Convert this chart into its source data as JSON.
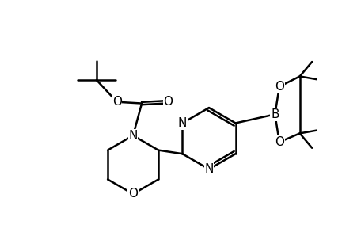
{
  "bg_color": "#ffffff",
  "line_color": "#000000",
  "line_width": 1.8,
  "font_size": 11,
  "figsize": [
    4.32,
    2.98
  ],
  "dpi": 100,
  "xlim": [
    -0.5,
    9.5
  ],
  "ylim": [
    -4.5,
    3.5
  ]
}
